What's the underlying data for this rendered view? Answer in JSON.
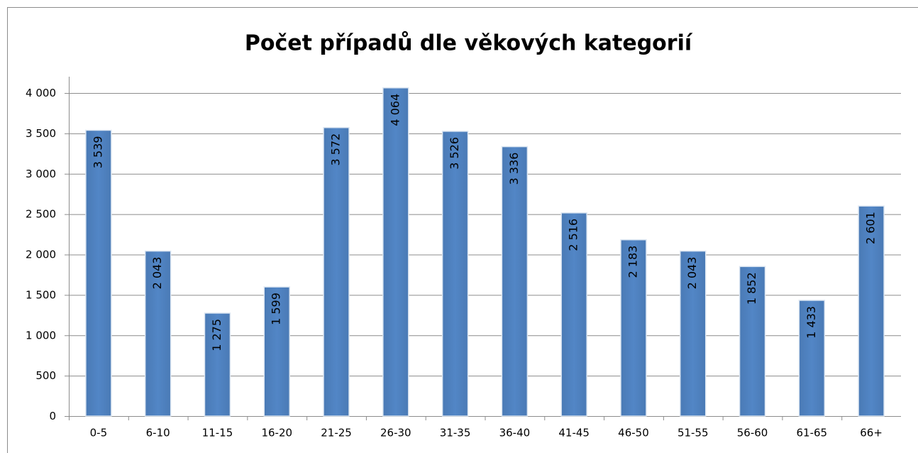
{
  "chart_data": {
    "type": "bar",
    "title": "Počet případů dle věkových kategorií",
    "categories": [
      "0-5",
      "6-10",
      "11-15",
      "16-20",
      "21-25",
      "26-30",
      "31-35",
      "36-40",
      "41-45",
      "46-50",
      "51-55",
      "56-60",
      "61-65",
      "66+"
    ],
    "values": [
      3539,
      2043,
      1275,
      1599,
      3572,
      4064,
      3526,
      3336,
      2516,
      2183,
      2043,
      1852,
      1433,
      2601
    ],
    "value_labels": [
      "3 539",
      "2 043",
      "1 275",
      "1 599",
      "3 572",
      "4 064",
      "3 526",
      "3 336",
      "2 516",
      "2 183",
      "2 043",
      "1 852",
      "1 433",
      "2 601"
    ],
    "color": "#4f81bd",
    "ylim": [
      0,
      4000
    ],
    "yticks": [
      0,
      500,
      {
        "value": 1000,
        "label": "1 000"
      },
      {
        "value": 1500,
        "label": "1 500"
      },
      {
        "value": 2000,
        "label": "2 000"
      },
      {
        "value": 2500,
        "label": "2 500"
      },
      {
        "value": 3000,
        "label": "3 000"
      },
      {
        "value": 3500,
        "label": "3 500"
      },
      {
        "value": 4000,
        "label": "4 000"
      }
    ],
    "grid": true
  }
}
